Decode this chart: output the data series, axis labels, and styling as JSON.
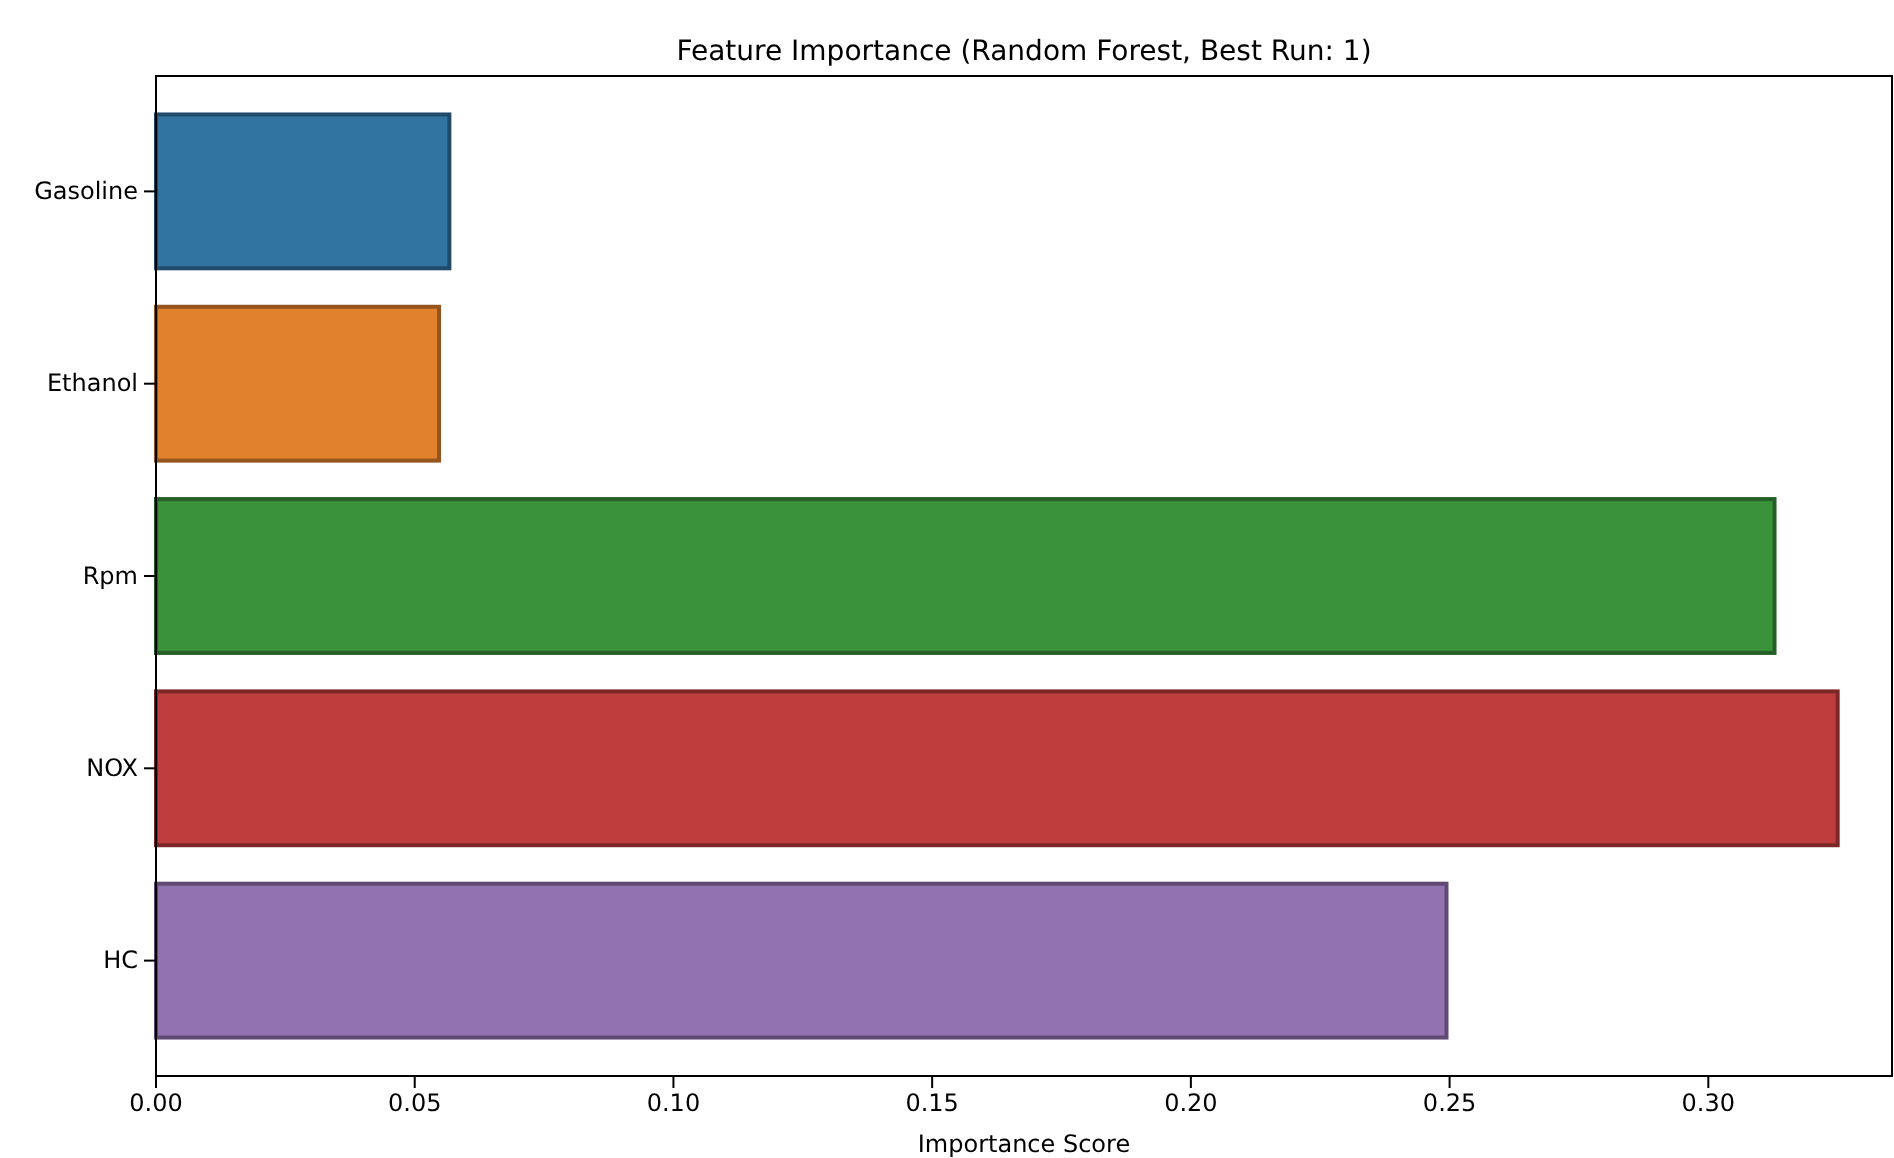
{
  "chart_data": {
    "type": "bar",
    "orientation": "horizontal",
    "title": "Feature Importance (Random Forest, Best Run: 1)",
    "xlabel": "Importance Score",
    "categories": [
      "Gasoline",
      "Ethanol",
      "Rpm",
      "NOX",
      "HC"
    ],
    "values": [
      0.0567,
      0.0547,
      0.3128,
      0.325,
      0.2494
    ],
    "colors": [
      "#3274a1",
      "#e1812c",
      "#3a923a",
      "#c03d3e",
      "#9372b2"
    ],
    "xlim": [
      0,
      0.3355
    ],
    "xticks": [
      {
        "value": 0,
        "label": "0.00"
      },
      {
        "value": 0.05,
        "label": "0.05"
      },
      {
        "value": 0.1,
        "label": "0.10"
      },
      {
        "value": 0.15,
        "label": "0.15"
      },
      {
        "value": 0.2,
        "label": "0.20"
      },
      {
        "value": 0.25,
        "label": "0.25"
      },
      {
        "value": 0.3,
        "label": "0.30"
      }
    ],
    "grid": false
  }
}
